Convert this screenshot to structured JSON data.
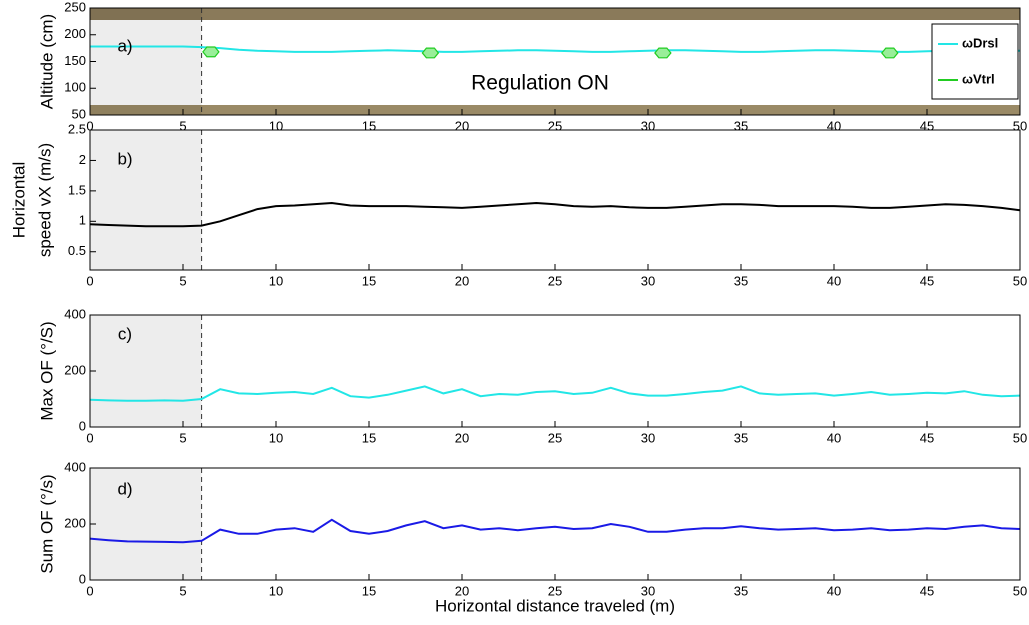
{
  "chart_data": [
    {
      "type": "line",
      "ylabel": "Altitude (cm)",
      "annotations": [
        "a)",
        "Regulation ON"
      ],
      "x": [
        0,
        1,
        2,
        3,
        4,
        5,
        6,
        7,
        8,
        9,
        10,
        11,
        12,
        13,
        14,
        15,
        16,
        17,
        18,
        19,
        20,
        21,
        22,
        23,
        24,
        25,
        26,
        27,
        28,
        29,
        30,
        31,
        32,
        33,
        34,
        35,
        36,
        37,
        38,
        39,
        40,
        41,
        42,
        43,
        44,
        45,
        46,
        47,
        48,
        49,
        50
      ],
      "series": [
        {
          "name": "ωDrsl",
          "color": "#22e6e6",
          "values": [
            178,
            178,
            178,
            178,
            178,
            178,
            177,
            175,
            172,
            170,
            169,
            168,
            168,
            168,
            169,
            170,
            171,
            170,
            169,
            168,
            168,
            169,
            170,
            171,
            171,
            170,
            169,
            168,
            168,
            169,
            170,
            171,
            171,
            170,
            169,
            168,
            168,
            169,
            170,
            171,
            171,
            170,
            169,
            168,
            168,
            169,
            170,
            171,
            171,
            170,
            170
          ]
        },
        {
          "name": "ωVtrl",
          "color": "#22cc22",
          "marker": "hexagon",
          "x": [
            6.5,
            18.3,
            30.8,
            43
          ],
          "values": [
            168,
            166,
            166,
            166
          ]
        }
      ],
      "xlim": [
        0,
        50
      ],
      "xticks": [
        0,
        5,
        10,
        15,
        20,
        25,
        30,
        35,
        40,
        45,
        50
      ],
      "ylim": [
        50,
        250
      ],
      "yticks": [
        50,
        100,
        150,
        200,
        250
      ],
      "shade_x": [
        0,
        6
      ],
      "legend": "upper right"
    },
    {
      "type": "line",
      "ylabel": [
        "Horizontal",
        "speed vX (m/s)"
      ],
      "annotations": [
        "b)"
      ],
      "x": [
        0,
        1,
        2,
        3,
        4,
        5,
        6,
        7,
        8,
        9,
        10,
        11,
        12,
        13,
        14,
        15,
        16,
        17,
        18,
        19,
        20,
        21,
        22,
        23,
        24,
        25,
        26,
        27,
        28,
        29,
        30,
        31,
        32,
        33,
        34,
        35,
        36,
        37,
        38,
        39,
        40,
        41,
        42,
        43,
        44,
        45,
        46,
        47,
        48,
        49,
        50
      ],
      "series": [
        {
          "color": "#000000",
          "values": [
            0.95,
            0.94,
            0.93,
            0.92,
            0.92,
            0.92,
            0.93,
            1.0,
            1.1,
            1.2,
            1.25,
            1.26,
            1.28,
            1.3,
            1.26,
            1.25,
            1.25,
            1.25,
            1.24,
            1.23,
            1.22,
            1.24,
            1.26,
            1.28,
            1.3,
            1.28,
            1.25,
            1.24,
            1.25,
            1.23,
            1.22,
            1.22,
            1.24,
            1.26,
            1.28,
            1.28,
            1.27,
            1.25,
            1.25,
            1.25,
            1.25,
            1.24,
            1.22,
            1.22,
            1.24,
            1.26,
            1.28,
            1.27,
            1.25,
            1.22,
            1.18
          ]
        }
      ],
      "xlim": [
        0,
        50
      ],
      "xticks": [
        0,
        5,
        10,
        15,
        20,
        25,
        30,
        35,
        40,
        45,
        50
      ],
      "ylim": [
        0.2,
        2.5
      ],
      "yticks": [
        0.5,
        1,
        1.5,
        2,
        2.5
      ],
      "shade_x": [
        0,
        6
      ]
    },
    {
      "type": "line",
      "ylabel": "Max OF (°/S)",
      "annotations": [
        "c)"
      ],
      "x": [
        0,
        1,
        2,
        3,
        4,
        5,
        6,
        7,
        8,
        9,
        10,
        11,
        12,
        13,
        14,
        15,
        16,
        17,
        18,
        19,
        20,
        21,
        22,
        23,
        24,
        25,
        26,
        27,
        28,
        29,
        30,
        31,
        32,
        33,
        34,
        35,
        36,
        37,
        38,
        39,
        40,
        41,
        42,
        43,
        44,
        45,
        46,
        47,
        48,
        49,
        50
      ],
      "series": [
        {
          "color": "#22e6e6",
          "values": [
            97,
            95,
            94,
            94,
            95,
            94,
            100,
            135,
            120,
            118,
            122,
            125,
            118,
            140,
            110,
            105,
            115,
            130,
            145,
            120,
            135,
            110,
            118,
            115,
            125,
            128,
            118,
            122,
            140,
            120,
            112,
            112,
            118,
            125,
            130,
            145,
            120,
            115,
            118,
            120,
            112,
            118,
            125,
            115,
            118,
            122,
            120,
            128,
            115,
            110,
            112
          ]
        }
      ],
      "xlim": [
        0,
        50
      ],
      "xticks": [
        0,
        5,
        10,
        15,
        20,
        25,
        30,
        35,
        40,
        45,
        50
      ],
      "ylim": [
        0,
        400
      ],
      "yticks": [
        0,
        200,
        400
      ],
      "shade_x": [
        0,
        6
      ]
    },
    {
      "type": "line",
      "ylabel": "Sum OF (°/s)",
      "annotations": [
        "d)"
      ],
      "xlabel": "Horizontal distance traveled (m)",
      "x": [
        0,
        1,
        2,
        3,
        4,
        5,
        6,
        7,
        8,
        9,
        10,
        11,
        12,
        13,
        14,
        15,
        16,
        17,
        18,
        19,
        20,
        21,
        22,
        23,
        24,
        25,
        26,
        27,
        28,
        29,
        30,
        31,
        32,
        33,
        34,
        35,
        36,
        37,
        38,
        39,
        40,
        41,
        42,
        43,
        44,
        45,
        46,
        47,
        48,
        49,
        50
      ],
      "series": [
        {
          "color": "#1a1ae6",
          "values": [
            148,
            142,
            138,
            137,
            136,
            135,
            140,
            180,
            165,
            165,
            180,
            185,
            172,
            215,
            175,
            165,
            175,
            195,
            210,
            185,
            195,
            180,
            185,
            178,
            185,
            190,
            182,
            185,
            200,
            190,
            172,
            172,
            180,
            185,
            185,
            192,
            185,
            180,
            182,
            185,
            178,
            180,
            185,
            178,
            180,
            185,
            182,
            190,
            195,
            185,
            182
          ]
        }
      ],
      "xlim": [
        0,
        50
      ],
      "xticks": [
        0,
        5,
        10,
        15,
        20,
        25,
        30,
        35,
        40,
        45,
        50
      ],
      "ylim": [
        0,
        400
      ],
      "yticks": [
        0,
        200,
        400
      ],
      "shade_x": [
        0,
        6
      ]
    }
  ]
}
